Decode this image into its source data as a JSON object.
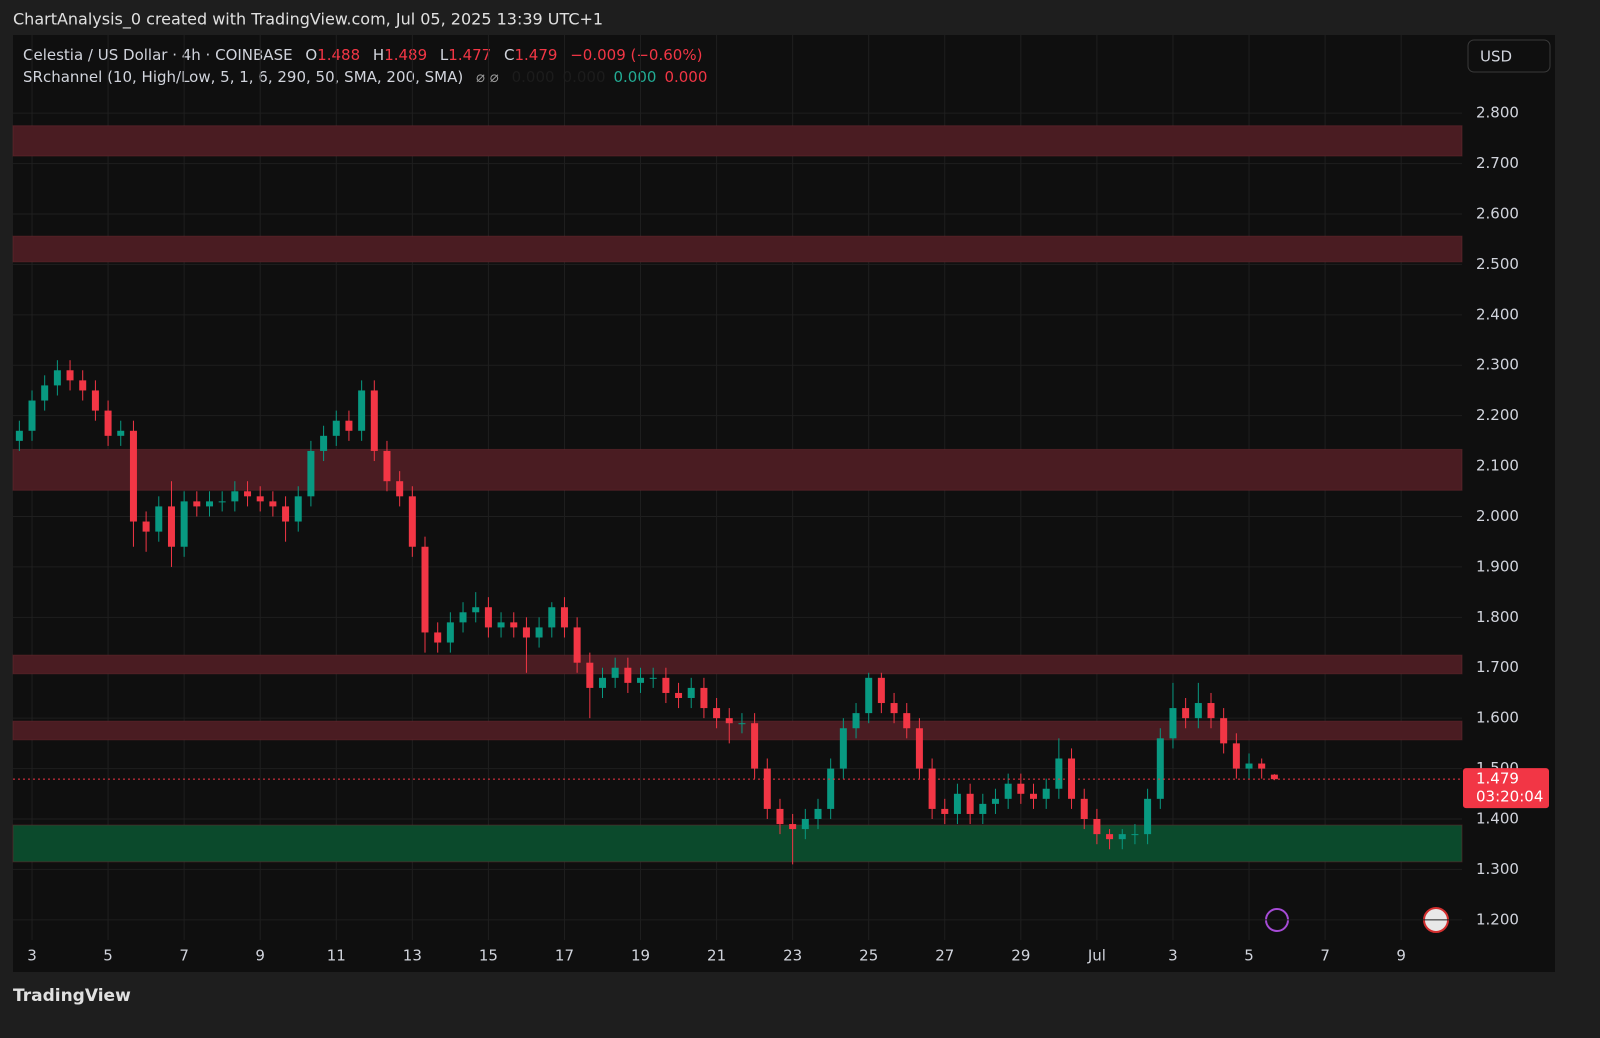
{
  "header": {
    "attribution": "ChartAnalysis_0 created with TradingView.com, Jul 05, 2025 13:39 UTC+1",
    "currency": "USD",
    "brand": "TradingView"
  },
  "legend": {
    "symbol": "Celestia / US Dollar · 4h · COINBASE",
    "ohlc": [
      {
        "key": "O",
        "value": "1.488"
      },
      {
        "key": "H",
        "value": "1.489"
      },
      {
        "key": "L",
        "value": "1.477"
      },
      {
        "key": "C",
        "value": "1.479"
      }
    ],
    "change": "−0.009 (−0.60%)",
    "indicator": "SRchannel (10, High/Low, 5, 1, 6, 290, 50, SMA, 200, SMA)",
    "indicator_flags": "⌀ ⌀",
    "indicator_values": [
      "0.000",
      "0.000",
      "0.000",
      "0.000"
    ],
    "indicator_colors": [
      "#1c1c1c",
      "#1c1c1c",
      "#22ab94",
      "#f23645"
    ]
  },
  "chart_data": {
    "type": "candlestick",
    "xlim": [
      2.5,
      40.6
    ],
    "ylim": [
      1.16,
      2.955
    ],
    "xticks": [
      3,
      5,
      7,
      9,
      11,
      13,
      15,
      17,
      19,
      21,
      23,
      25,
      27,
      29,
      {
        "value": 31,
        "label": "Jul"
      },
      {
        "value": 33,
        "label": "3"
      },
      {
        "value": 35,
        "label": "5"
      },
      {
        "value": 37,
        "label": "7"
      },
      {
        "value": 39,
        "label": "9"
      }
    ],
    "yticks": [
      {
        "value": 1.2,
        "label": "1.200"
      },
      {
        "value": 1.3,
        "label": "1.300"
      },
      {
        "value": 1.4,
        "label": "1.400"
      },
      {
        "value": 1.5,
        "label": "1.500"
      },
      {
        "value": 1.6,
        "label": "1.600"
      },
      {
        "value": 1.7,
        "label": "1.700"
      },
      {
        "value": 1.8,
        "label": "1.800"
      },
      {
        "value": 1.9,
        "label": "1.900"
      },
      {
        "value": 2.0,
        "label": "2.000"
      },
      {
        "value": 2.1,
        "label": "2.100"
      },
      {
        "value": 2.2,
        "label": "2.200"
      },
      {
        "value": 2.3,
        "label": "2.300"
      },
      {
        "value": 2.4,
        "label": "2.400"
      },
      {
        "value": 2.5,
        "label": "2.500"
      },
      {
        "value": 2.6,
        "label": "2.600"
      },
      {
        "value": 2.7,
        "label": "2.700"
      },
      {
        "value": 2.8,
        "label": "2.800"
      }
    ],
    "grid": true,
    "up_color": "#089981",
    "down_color": "#f23645",
    "zones": [
      {
        "low": 2.715,
        "high": 2.775,
        "color": "#4a1c22"
      },
      {
        "low": 2.505,
        "high": 2.556,
        "color": "#4a1c22"
      },
      {
        "low": 2.052,
        "high": 2.133,
        "color": "#4a1c22"
      },
      {
        "low": 1.688,
        "high": 1.725,
        "color": "#4a1c22"
      },
      {
        "low": 1.557,
        "high": 1.594,
        "color": "#4a1c22"
      },
      {
        "low": 1.315,
        "high": 1.388,
        "color": "#0b4a2c"
      }
    ],
    "last_price": 1.479,
    "countdown": "03:20:04",
    "last_price_color": "#f23645",
    "x": [
      2.667,
      3,
      3.333,
      3.667,
      4,
      4.333,
      4.667,
      5,
      5.333,
      5.667,
      6,
      6.333,
      6.667,
      7,
      7.333,
      7.667,
      8,
      8.333,
      8.667,
      9,
      9.333,
      9.667,
      10,
      10.333,
      10.667,
      11,
      11.333,
      11.667,
      12,
      12.333,
      12.667,
      13,
      13.333,
      13.667,
      14,
      14.333,
      14.667,
      15,
      15.333,
      15.667,
      16,
      16.333,
      16.667,
      17,
      17.333,
      17.667,
      18,
      18.333,
      18.667,
      19,
      19.333,
      19.667,
      20,
      20.333,
      20.667,
      21,
      21.333,
      21.667,
      22,
      22.333,
      22.667,
      23,
      23.333,
      23.667,
      24,
      24.333,
      24.667,
      25,
      25.333,
      25.667,
      26,
      26.333,
      26.667,
      27,
      27.333,
      27.667,
      28,
      28.333,
      28.667,
      29,
      29.333,
      29.667,
      30,
      30.333,
      30.667,
      31,
      31.333,
      31.667,
      32,
      32.333,
      32.667,
      33,
      33.333,
      33.667,
      34,
      34.333,
      34.667,
      35,
      35.333,
      35.667
    ],
    "open": [
      2.15,
      2.17,
      2.23,
      2.26,
      2.29,
      2.27,
      2.25,
      2.21,
      2.16,
      2.17,
      1.99,
      1.97,
      2.02,
      1.94,
      2.03,
      2.02,
      2.03,
      2.03,
      2.05,
      2.04,
      2.03,
      2.02,
      1.99,
      2.04,
      2.13,
      2.16,
      2.19,
      2.17,
      2.25,
      2.13,
      2.07,
      2.04,
      1.94,
      1.77,
      1.75,
      1.79,
      1.81,
      1.82,
      1.78,
      1.79,
      1.78,
      1.76,
      1.78,
      1.82,
      1.78,
      1.71,
      1.66,
      1.68,
      1.7,
      1.67,
      1.68,
      1.68,
      1.65,
      1.64,
      1.66,
      1.62,
      1.6,
      1.59,
      1.59,
      1.5,
      1.42,
      1.39,
      1.38,
      1.4,
      1.42,
      1.5,
      1.58,
      1.61,
      1.68,
      1.63,
      1.61,
      1.58,
      1.5,
      1.42,
      1.41,
      1.45,
      1.41,
      1.43,
      1.44,
      1.47,
      1.45,
      1.44,
      1.46,
      1.52,
      1.44,
      1.4,
      1.37,
      1.36,
      1.37,
      1.37,
      1.44,
      1.56,
      1.62,
      1.6,
      1.63,
      1.6,
      1.55,
      1.5,
      1.51,
      1.488
    ],
    "high": [
      2.19,
      2.25,
      2.28,
      2.31,
      2.31,
      2.29,
      2.27,
      2.23,
      2.19,
      2.19,
      2.01,
      2.04,
      2.07,
      2.05,
      2.05,
      2.05,
      2.05,
      2.07,
      2.07,
      2.06,
      2.05,
      2.04,
      2.06,
      2.15,
      2.18,
      2.21,
      2.21,
      2.27,
      2.27,
      2.15,
      2.09,
      2.06,
      1.96,
      1.79,
      1.81,
      1.83,
      1.85,
      1.84,
      1.81,
      1.81,
      1.8,
      1.8,
      1.83,
      1.84,
      1.8,
      1.73,
      1.7,
      1.72,
      1.72,
      1.7,
      1.7,
      1.7,
      1.67,
      1.68,
      1.68,
      1.64,
      1.62,
      1.61,
      1.61,
      1.52,
      1.44,
      1.41,
      1.42,
      1.44,
      1.52,
      1.6,
      1.63,
      1.69,
      1.69,
      1.65,
      1.63,
      1.6,
      1.52,
      1.44,
      1.47,
      1.47,
      1.45,
      1.46,
      1.49,
      1.49,
      1.47,
      1.48,
      1.56,
      1.54,
      1.46,
      1.42,
      1.38,
      1.38,
      1.39,
      1.46,
      1.58,
      1.67,
      1.64,
      1.67,
      1.65,
      1.62,
      1.57,
      1.53,
      1.52,
      1.489
    ],
    "low": [
      2.13,
      2.15,
      2.21,
      2.24,
      2.25,
      2.23,
      2.19,
      2.14,
      2.14,
      1.94,
      1.93,
      1.95,
      1.9,
      1.92,
      2.0,
      2.0,
      2.01,
      2.01,
      2.02,
      2.01,
      2.0,
      1.95,
      1.97,
      2.02,
      2.11,
      2.14,
      2.15,
      2.15,
      2.11,
      2.05,
      2.02,
      1.92,
      1.73,
      1.73,
      1.73,
      1.77,
      1.79,
      1.76,
      1.76,
      1.76,
      1.69,
      1.74,
      1.76,
      1.76,
      1.69,
      1.6,
      1.64,
      1.66,
      1.65,
      1.65,
      1.66,
      1.63,
      1.62,
      1.62,
      1.6,
      1.58,
      1.55,
      1.57,
      1.48,
      1.4,
      1.37,
      1.31,
      1.36,
      1.38,
      1.4,
      1.48,
      1.56,
      1.59,
      1.61,
      1.59,
      1.56,
      1.48,
      1.4,
      1.39,
      1.39,
      1.39,
      1.39,
      1.41,
      1.42,
      1.43,
      1.42,
      1.42,
      1.44,
      1.42,
      1.38,
      1.35,
      1.34,
      1.34,
      1.35,
      1.35,
      1.42,
      1.54,
      1.58,
      1.58,
      1.58,
      1.53,
      1.48,
      1.48,
      1.48,
      1.477
    ],
    "close": [
      2.17,
      2.23,
      2.26,
      2.29,
      2.27,
      2.25,
      2.21,
      2.16,
      2.17,
      1.99,
      1.97,
      2.02,
      1.94,
      2.03,
      2.02,
      2.03,
      2.03,
      2.05,
      2.04,
      2.03,
      2.02,
      1.99,
      2.04,
      2.13,
      2.16,
      2.19,
      2.17,
      2.25,
      2.13,
      2.07,
      2.04,
      1.94,
      1.77,
      1.75,
      1.79,
      1.81,
      1.82,
      1.78,
      1.79,
      1.78,
      1.76,
      1.78,
      1.82,
      1.78,
      1.71,
      1.66,
      1.68,
      1.7,
      1.67,
      1.68,
      1.68,
      1.65,
      1.64,
      1.66,
      1.62,
      1.6,
      1.59,
      1.59,
      1.5,
      1.42,
      1.39,
      1.38,
      1.4,
      1.42,
      1.5,
      1.58,
      1.61,
      1.68,
      1.63,
      1.61,
      1.58,
      1.5,
      1.42,
      1.41,
      1.45,
      1.41,
      1.43,
      1.44,
      1.47,
      1.45,
      1.44,
      1.46,
      1.52,
      1.44,
      1.4,
      1.37,
      1.36,
      1.37,
      1.37,
      1.44,
      1.56,
      1.62,
      1.6,
      1.63,
      1.6,
      1.55,
      1.5,
      1.51,
      1.5,
      1.479
    ]
  }
}
